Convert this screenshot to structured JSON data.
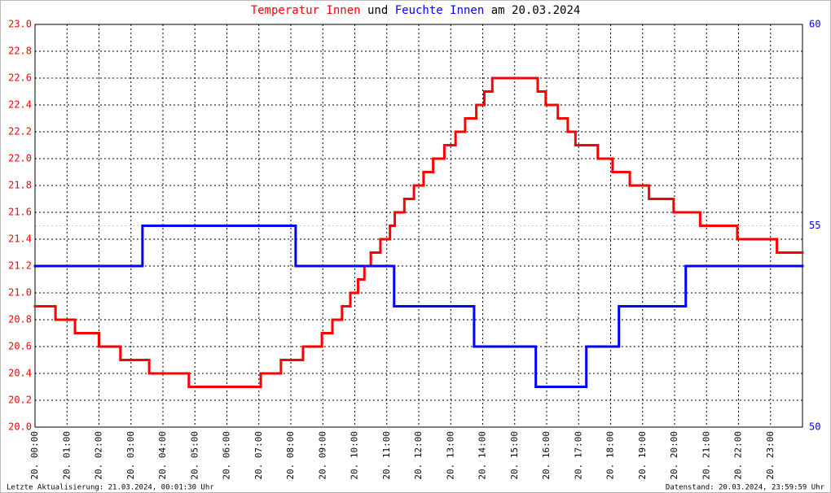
{
  "chart_data": {
    "type": "line",
    "title_joiner": "und",
    "title_suffix": "am 20.03.2024",
    "xlim": [
      0,
      24
    ],
    "xticks": [
      {
        "value": 0,
        "label": "20. 00:00"
      },
      {
        "value": 1,
        "label": "20. 01:00"
      },
      {
        "value": 2,
        "label": "20. 02:00"
      },
      {
        "value": 3,
        "label": "20. 03:00"
      },
      {
        "value": 4,
        "label": "20. 04:00"
      },
      {
        "value": 5,
        "label": "20. 05:00"
      },
      {
        "value": 6,
        "label": "20. 06:00"
      },
      {
        "value": 7,
        "label": "20. 07:00"
      },
      {
        "value": 8,
        "label": "20. 08:00"
      },
      {
        "value": 9,
        "label": "20. 09:00"
      },
      {
        "value": 10,
        "label": "20. 10:00"
      },
      {
        "value": 11,
        "label": "20. 11:00"
      },
      {
        "value": 12,
        "label": "20. 12:00"
      },
      {
        "value": 13,
        "label": "20. 13:00"
      },
      {
        "value": 14,
        "label": "20. 14:00"
      },
      {
        "value": 15,
        "label": "20. 15:00"
      },
      {
        "value": 16,
        "label": "20. 16:00"
      },
      {
        "value": 17,
        "label": "20. 17:00"
      },
      {
        "value": 18,
        "label": "20. 18:00"
      },
      {
        "value": 19,
        "label": "20. 19:00"
      },
      {
        "value": 20,
        "label": "20. 20:00"
      },
      {
        "value": 21,
        "label": "20. 21:00"
      },
      {
        "value": 22,
        "label": "20. 22:00"
      },
      {
        "value": 23,
        "label": "20. 23:00"
      }
    ],
    "ylim": [
      20.0,
      23.0
    ],
    "yticks": [
      {
        "value": 20.0,
        "label": "20.0"
      },
      {
        "value": 20.2,
        "label": "20.2"
      },
      {
        "value": 20.4,
        "label": "20.4"
      },
      {
        "value": 20.6,
        "label": "20.6"
      },
      {
        "value": 20.8,
        "label": "20.8"
      },
      {
        "value": 21.0,
        "label": "21.0"
      },
      {
        "value": 21.2,
        "label": "21.2"
      },
      {
        "value": 21.4,
        "label": "21.4"
      },
      {
        "value": 21.6,
        "label": "21.6"
      },
      {
        "value": 21.8,
        "label": "21.8"
      },
      {
        "value": 22.0,
        "label": "22.0"
      },
      {
        "value": 22.2,
        "label": "22.2"
      },
      {
        "value": 22.4,
        "label": "22.4"
      },
      {
        "value": 22.6,
        "label": "22.6"
      },
      {
        "value": 22.8,
        "label": "22.8"
      },
      {
        "value": 23.0,
        "label": "23.0"
      }
    ],
    "y2lim": [
      50,
      60
    ],
    "y2ticks": [
      50,
      55,
      60
    ],
    "grid": true,
    "step": true,
    "series": [
      {
        "name": "Temperatur Innen",
        "color": "#ff0000",
        "bins": [
          0,
          0.64,
          1.25,
          2.0,
          2.67,
          3.57,
          4.81,
          7.06,
          7.69,
          8.38,
          8.97,
          9.3,
          9.6,
          9.86,
          10.1,
          10.3,
          10.5,
          10.8,
          11.1,
          11.25,
          11.55,
          11.85,
          12.15,
          12.45,
          12.8,
          13.15,
          13.45,
          13.8,
          14.05,
          14.3,
          15.72,
          15.97,
          16.35,
          16.66,
          16.9,
          17.6,
          18.06,
          18.6,
          19.2,
          19.97,
          20.8,
          21.96,
          23.2,
          24
        ],
        "values": [
          20.9,
          20.8,
          20.7,
          20.6,
          20.5,
          20.4,
          20.3,
          20.4,
          20.5,
          20.6,
          20.7,
          20.8,
          20.9,
          21.0,
          21.1,
          21.2,
          21.3,
          21.4,
          21.5,
          21.6,
          21.7,
          21.8,
          21.9,
          22.0,
          22.1,
          22.2,
          22.3,
          22.4,
          22.5,
          22.6,
          22.5,
          22.4,
          22.3,
          22.2,
          22.1,
          22.0,
          21.9,
          21.8,
          21.7,
          21.6,
          21.5,
          21.4,
          21.3
        ]
      },
      {
        "name": "Feuchte Innen",
        "color": "#0000ff",
        "axis": "y2",
        "bins": [
          0,
          3.36,
          8.15,
          11.23,
          13.73,
          15.66,
          17.24,
          18.26,
          20.35,
          24
        ],
        "values": [
          54,
          55,
          54,
          53,
          52,
          51,
          52,
          53,
          54
        ]
      }
    ]
  },
  "footer": {
    "left": "Letzte Aktualisierung: 21.03.2024, 00:01:30 Uhr",
    "right": "Datenstand: 20.03.2024, 23:59:59 Uhr"
  }
}
